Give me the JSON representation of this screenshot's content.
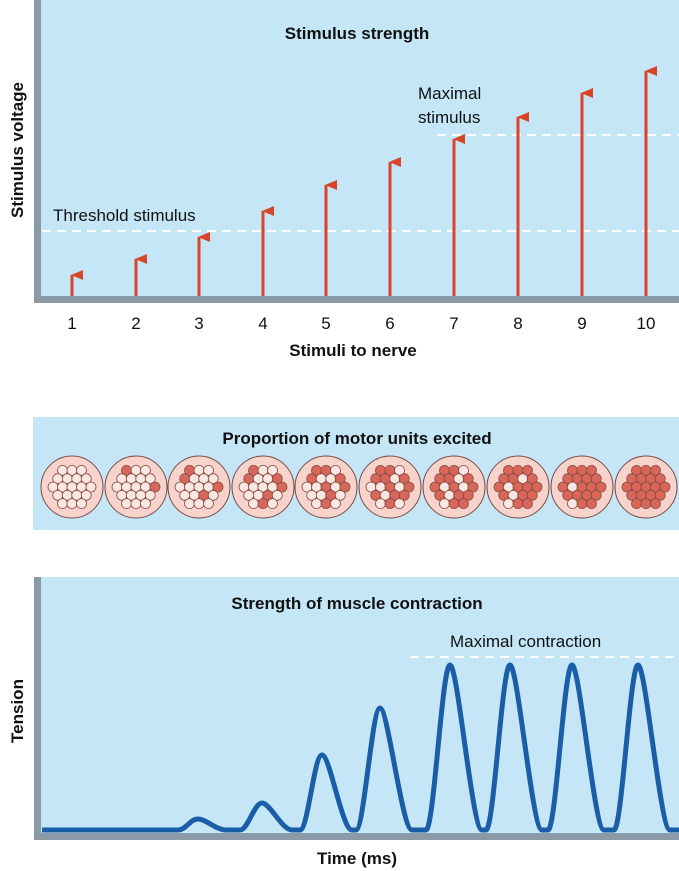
{
  "stimulus_panel": {
    "title": "Stimulus strength",
    "y_label": "Stimulus voltage",
    "x_label": "Stimuli to nerve",
    "stimuli": [
      "1",
      "2",
      "3",
      "4",
      "5",
      "6",
      "7",
      "8",
      "9",
      "10"
    ],
    "threshold_label": "Threshold stimulus",
    "maximal_label": [
      "Maximal",
      "stimulus"
    ]
  },
  "motor_panel": {
    "title": "Proportion of motor units excited"
  },
  "tension_panel": {
    "title": "Strength of muscle contraction",
    "y_label": "Tension",
    "x_label": "Time (ms)",
    "maximal_label": "Maximal contraction"
  }
}
